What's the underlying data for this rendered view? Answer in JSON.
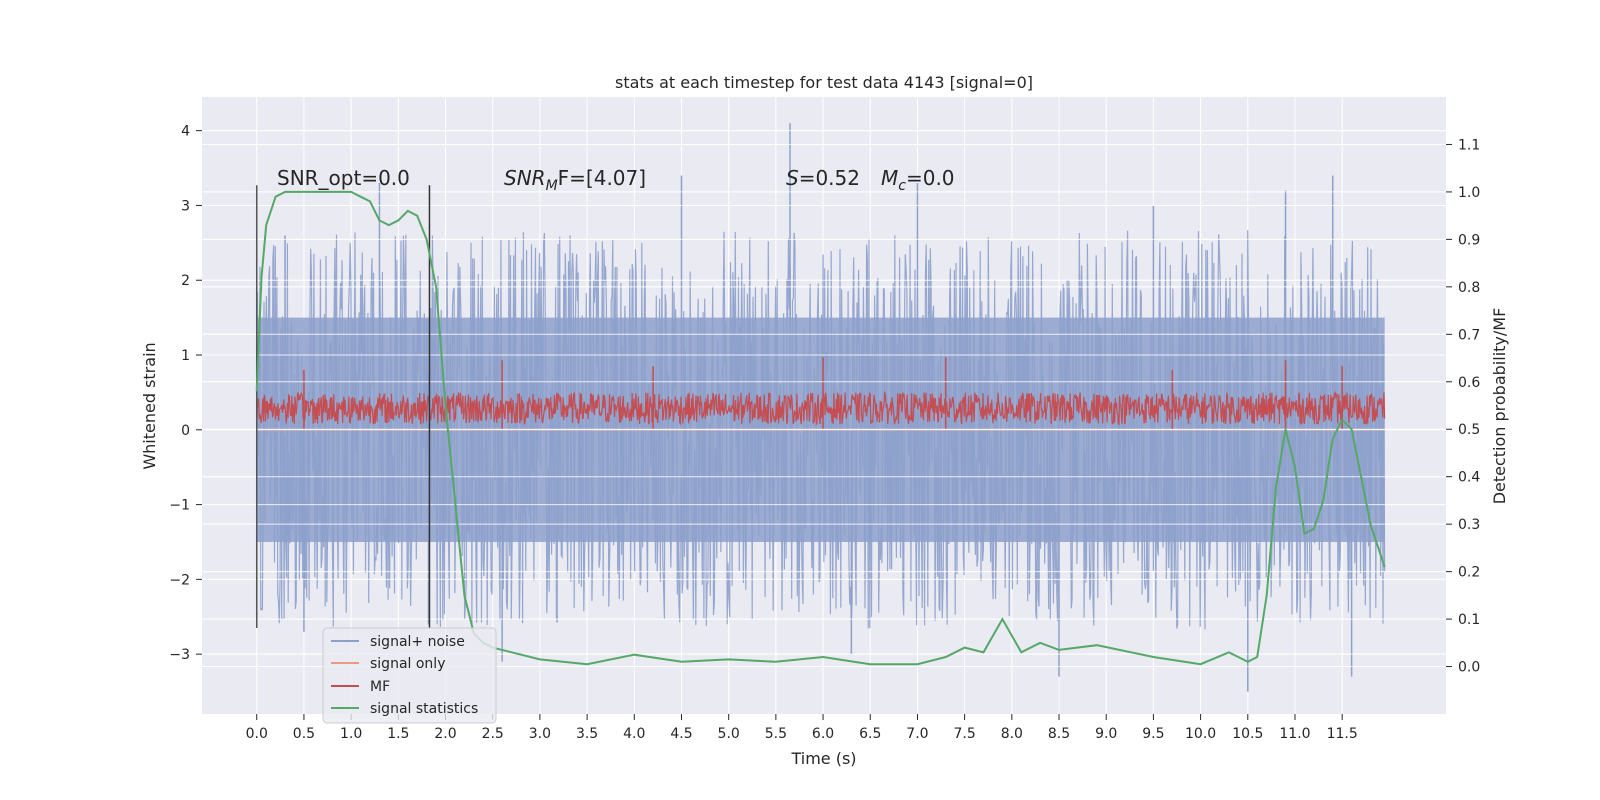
{
  "chart_data": {
    "type": "line",
    "title": "stats at each timestep for test data 4143 [signal=0]",
    "xlabel": "Time (s)",
    "ylabel_left": "Whitened strain",
    "ylabel_right": "Detection probability/MF",
    "xlim": [
      -0.58,
      12.6
    ],
    "ylim_left": [
      -3.8,
      4.45
    ],
    "ylim_right": [
      -0.1,
      1.2
    ],
    "xticks": [
      "0.0",
      "0.5",
      "1.0",
      "1.5",
      "2.0",
      "2.5",
      "3.0",
      "3.5",
      "4.0",
      "4.5",
      "5.0",
      "5.5",
      "6.0",
      "6.5",
      "7.0",
      "7.5",
      "8.0",
      "8.5",
      "9.0",
      "9.5",
      "10.0",
      "10.5",
      "11.0",
      "11.5"
    ],
    "yticks_left": [
      -3,
      -2,
      -1,
      0,
      1,
      2,
      3,
      4
    ],
    "yticks_right": [
      "0.0",
      "0.1",
      "0.2",
      "0.3",
      "0.4",
      "0.5",
      "0.6",
      "0.7",
      "0.8",
      "0.9",
      "1.0",
      "1.1"
    ],
    "grid": true,
    "legend_position": "lower-left",
    "annotations": {
      "snr_opt": "SNR_opt=0.0",
      "snr_mf_var": "SNR",
      "snr_mf_sub": "M",
      "snr_mf_tail": "F=[4.07]",
      "s_var": "S",
      "s_val": "=0.52",
      "mc_var": "M",
      "mc_sub": "c",
      "mc_val": "=0.0"
    },
    "vertical_markers": [
      0.0,
      1.83
    ],
    "series": [
      {
        "name": "signal+ noise",
        "color": "#8da0cb",
        "description_values": "band from about -1.5 to 1.5 with spikes up to 4.1 and down to -3.5, t from 0 to 11.95",
        "envelope_upper": [
          [
            0.0,
            1.5
          ],
          [
            2.0,
            1.6
          ],
          [
            4.0,
            1.5
          ],
          [
            6.0,
            1.6
          ],
          [
            8.0,
            1.5
          ],
          [
            10.0,
            1.6
          ],
          [
            11.95,
            1.5
          ]
        ],
        "envelope_lower": [
          [
            0.0,
            -1.5
          ],
          [
            2.0,
            -1.6
          ],
          [
            4.0,
            -1.5
          ],
          [
            6.0,
            -1.6
          ],
          [
            8.0,
            -1.5
          ],
          [
            10.0,
            -1.6
          ],
          [
            11.95,
            -1.5
          ]
        ],
        "spikes": [
          [
            0.3,
            2.6
          ],
          [
            0.5,
            -2.7
          ],
          [
            1.3,
            3.3
          ],
          [
            1.82,
            -2.6
          ],
          [
            2.6,
            -3.1
          ],
          [
            4.5,
            3.4
          ],
          [
            5.65,
            4.1
          ],
          [
            6.3,
            -3.0
          ],
          [
            7.0,
            3.3
          ],
          [
            8.5,
            -3.3
          ],
          [
            9.5,
            3.0
          ],
          [
            10.5,
            -3.5
          ],
          [
            10.9,
            3.2
          ],
          [
            11.4,
            3.4
          ],
          [
            11.6,
            -3.3
          ]
        ]
      },
      {
        "name": "signal only",
        "color": "#e99d7c",
        "x": [
          0.0,
          11.95
        ],
        "y": [
          0.0,
          0.0
        ]
      },
      {
        "name": "MF",
        "color": "#c44e52",
        "band_low": 0.0,
        "band_high": 0.5,
        "spikes": [
          [
            0.5,
            0.8
          ],
          [
            2.6,
            0.93
          ],
          [
            4.2,
            0.85
          ],
          [
            6.0,
            0.97
          ],
          [
            7.3,
            0.97
          ],
          [
            9.7,
            0.8
          ],
          [
            10.9,
            0.93
          ],
          [
            11.5,
            0.85
          ]
        ]
      },
      {
        "name": "signal statistics",
        "color": "#55a868",
        "axis": "right",
        "x": [
          0.0,
          0.05,
          0.1,
          0.15,
          0.2,
          0.3,
          0.4,
          0.5,
          0.6,
          0.8,
          1.0,
          1.1,
          1.2,
          1.3,
          1.4,
          1.5,
          1.6,
          1.7,
          1.8,
          1.9,
          2.0,
          2.1,
          2.2,
          2.3,
          2.4,
          2.5,
          2.7,
          3.0,
          3.5,
          4.0,
          4.5,
          5.0,
          5.5,
          6.0,
          6.5,
          7.0,
          7.3,
          7.5,
          7.7,
          7.9,
          8.1,
          8.3,
          8.5,
          8.9,
          9.5,
          10.0,
          10.3,
          10.5,
          10.6,
          10.7,
          10.8,
          10.9,
          11.0,
          11.1,
          11.2,
          11.3,
          11.4,
          11.5,
          11.6,
          11.7,
          11.8,
          11.95
        ],
        "y": [
          0.58,
          0.82,
          0.93,
          0.96,
          0.99,
          1.0,
          1.0,
          1.0,
          1.0,
          1.0,
          1.0,
          0.99,
          0.98,
          0.94,
          0.93,
          0.94,
          0.96,
          0.95,
          0.9,
          0.8,
          0.55,
          0.35,
          0.15,
          0.07,
          0.05,
          0.04,
          0.03,
          0.015,
          0.005,
          0.025,
          0.01,
          0.015,
          0.01,
          0.02,
          0.005,
          0.005,
          0.02,
          0.04,
          0.03,
          0.1,
          0.03,
          0.05,
          0.035,
          0.045,
          0.02,
          0.005,
          0.03,
          0.01,
          0.02,
          0.15,
          0.38,
          0.5,
          0.42,
          0.28,
          0.29,
          0.35,
          0.48,
          0.52,
          0.5,
          0.4,
          0.3,
          0.21
        ]
      }
    ]
  }
}
